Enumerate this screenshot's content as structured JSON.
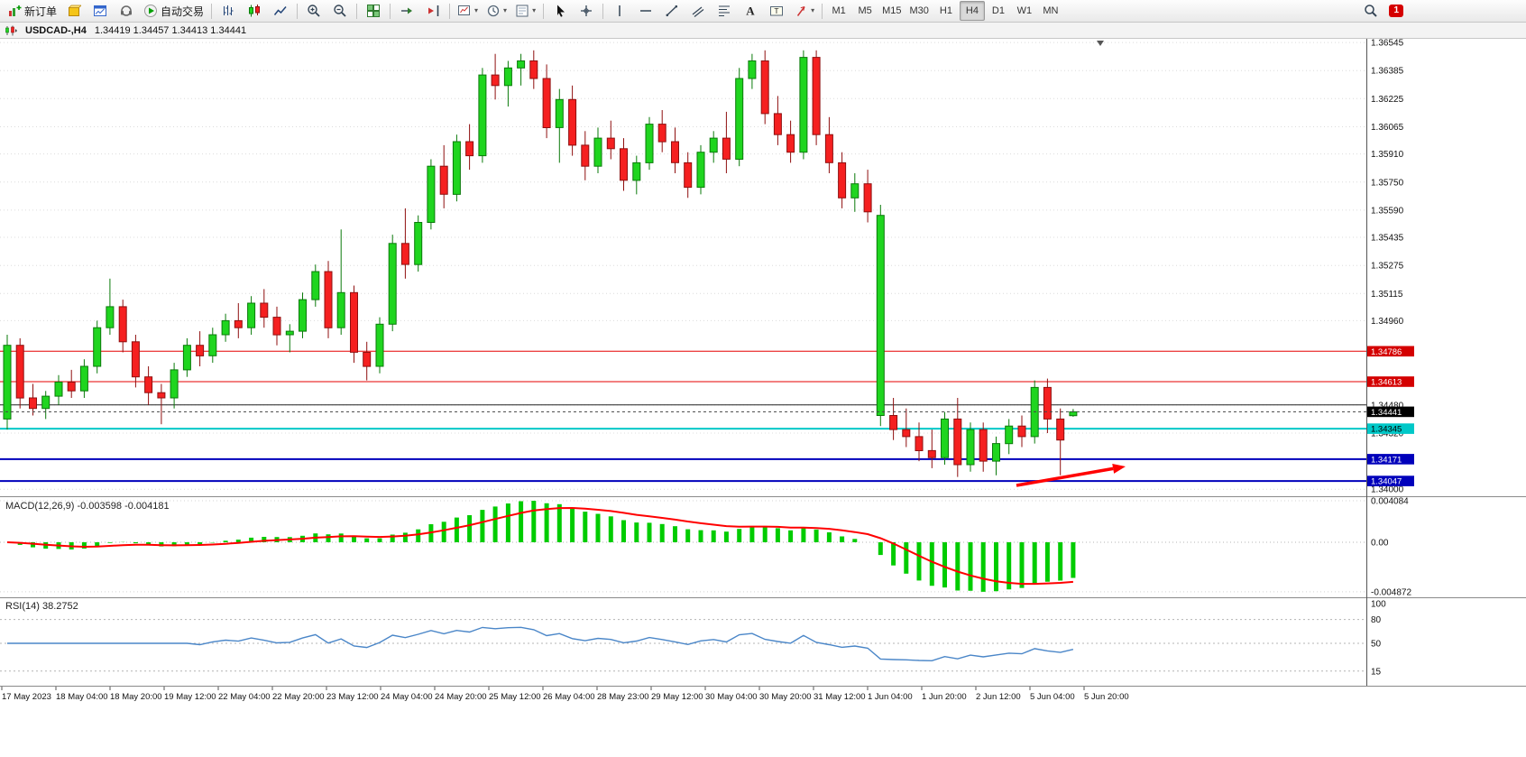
{
  "toolbar": {
    "items": [
      {
        "name": "new-order-button",
        "icon": "chart-plus",
        "label": "新订单"
      },
      {
        "name": "metaeditor-button",
        "icon": "cube"
      },
      {
        "name": "chart-window-button",
        "icon": "chart-window"
      },
      {
        "name": "community-button",
        "icon": "headset"
      },
      {
        "name": "autotrading-button",
        "icon": "play",
        "label": "自动交易"
      },
      {
        "sep": true
      },
      {
        "name": "bar-chart-button",
        "icon": "bars"
      },
      {
        "name": "candlestick-chart-button",
        "icon": "candles"
      },
      {
        "name": "line-chart-button",
        "icon": "line-chart"
      },
      {
        "sep": true
      },
      {
        "name": "zoom-in-button",
        "icon": "zoom-in"
      },
      {
        "name": "zoom-out-button",
        "icon": "zoom-out"
      },
      {
        "sep": true
      },
      {
        "name": "tile-windows-button",
        "icon": "tile"
      },
      {
        "sep": true
      },
      {
        "name": "auto-scroll-button",
        "icon": "autoscroll"
      },
      {
        "name": "chart-shift-button",
        "icon": "shift"
      },
      {
        "sep": true
      },
      {
        "name": "indicators-button",
        "icon": "new-chart",
        "caret": true
      },
      {
        "name": "periods-button",
        "icon": "clock",
        "caret": true
      },
      {
        "name": "templates-button",
        "icon": "template",
        "caret": true
      },
      {
        "sep": true
      },
      {
        "name": "cursor-button",
        "icon": "cursor"
      },
      {
        "name": "crosshair-button",
        "icon": "crosshair"
      },
      {
        "sep": true
      },
      {
        "name": "vertical-line-button",
        "icon": "vline"
      },
      {
        "name": "horizontal-line-button",
        "icon": "hline"
      },
      {
        "name": "trendline-button",
        "icon": "trendline"
      },
      {
        "name": "channel-button",
        "icon": "channel"
      },
      {
        "name": "fibonacci-button",
        "icon": "fibo"
      },
      {
        "name": "text-button",
        "icon": "text"
      },
      {
        "name": "text-label-button",
        "icon": "label"
      },
      {
        "name": "arrows-button",
        "icon": "arrows",
        "caret": true
      },
      {
        "sep": true
      },
      {
        "name": "timeframe-m1-button",
        "tf": true,
        "label": "M1"
      },
      {
        "name": "timeframe-m5-button",
        "tf": true,
        "label": "M5"
      },
      {
        "name": "timeframe-m15-button",
        "tf": true,
        "label": "M15"
      },
      {
        "name": "timeframe-m30-button",
        "tf": true,
        "label": "M30"
      },
      {
        "name": "timeframe-h1-button",
        "tf": true,
        "label": "H1"
      },
      {
        "name": "timeframe-h4-button",
        "tf": true,
        "label": "H4",
        "active": true
      },
      {
        "name": "timeframe-d1-button",
        "tf": true,
        "label": "D1"
      },
      {
        "name": "timeframe-w1-button",
        "tf": true,
        "label": "W1"
      },
      {
        "name": "timeframe-mn-button",
        "tf": true,
        "label": "MN"
      }
    ],
    "right": {
      "notification_count": "1"
    }
  },
  "header": {
    "symbol_period": "USDCAD-,H4",
    "ohlc": "1.34419 1.34457 1.34413 1.34441"
  },
  "chart_data": {
    "type": "candlestick",
    "symbol": "USDCAD-",
    "timeframe": "H4",
    "title": "USDCAD-,H4",
    "current_bar": {
      "open": 1.34419,
      "high": 1.34457,
      "low": 1.34413,
      "close": 1.34441
    },
    "candles": [
      [
        1.344,
        1.3488,
        1.3434,
        1.3482
      ],
      [
        1.3482,
        1.3486,
        1.3446,
        1.3452
      ],
      [
        1.3452,
        1.346,
        1.3442,
        1.3446
      ],
      [
        1.3446,
        1.3456,
        1.344,
        1.3453
      ],
      [
        1.3453,
        1.3465,
        1.3448,
        1.3461
      ],
      [
        1.3461,
        1.3468,
        1.3452,
        1.3456
      ],
      [
        1.3456,
        1.3474,
        1.3452,
        1.347
      ],
      [
        1.347,
        1.3496,
        1.3466,
        1.3492
      ],
      [
        1.3492,
        1.352,
        1.3488,
        1.3504
      ],
      [
        1.3504,
        1.3508,
        1.3478,
        1.3484
      ],
      [
        1.3484,
        1.3488,
        1.3458,
        1.3464
      ],
      [
        1.3464,
        1.347,
        1.3448,
        1.3455
      ],
      [
        1.3455,
        1.346,
        1.3437,
        1.3452
      ],
      [
        1.3452,
        1.3472,
        1.3446,
        1.3468
      ],
      [
        1.3468,
        1.3486,
        1.3464,
        1.3482
      ],
      [
        1.3482,
        1.349,
        1.347,
        1.3476
      ],
      [
        1.3476,
        1.3492,
        1.3472,
        1.3488
      ],
      [
        1.3488,
        1.35,
        1.3484,
        1.3496
      ],
      [
        1.3496,
        1.3506,
        1.3486,
        1.3492
      ],
      [
        1.3492,
        1.351,
        1.3488,
        1.3506
      ],
      [
        1.3506,
        1.3514,
        1.3492,
        1.3498
      ],
      [
        1.3498,
        1.3504,
        1.3482,
        1.3488
      ],
      [
        1.3488,
        1.3494,
        1.3478,
        1.349
      ],
      [
        1.349,
        1.3512,
        1.3486,
        1.3508
      ],
      [
        1.3508,
        1.3528,
        1.3504,
        1.3524
      ],
      [
        1.3524,
        1.353,
        1.3486,
        1.3492
      ],
      [
        1.3492,
        1.3548,
        1.3488,
        1.3512
      ],
      [
        1.3512,
        1.3516,
        1.3472,
        1.3478
      ],
      [
        1.3478,
        1.3484,
        1.3462,
        1.347
      ],
      [
        1.347,
        1.3498,
        1.3466,
        1.3494
      ],
      [
        1.3494,
        1.3545,
        1.349,
        1.354
      ],
      [
        1.354,
        1.356,
        1.352,
        1.3528
      ],
      [
        1.3528,
        1.3556,
        1.3524,
        1.3552
      ],
      [
        1.3552,
        1.3588,
        1.3548,
        1.3584
      ],
      [
        1.3584,
        1.3596,
        1.356,
        1.3568
      ],
      [
        1.3568,
        1.3602,
        1.3564,
        1.3598
      ],
      [
        1.3598,
        1.3608,
        1.3582,
        1.359
      ],
      [
        1.359,
        1.364,
        1.3586,
        1.3636
      ],
      [
        1.3636,
        1.3648,
        1.3622,
        1.363
      ],
      [
        1.363,
        1.3644,
        1.3618,
        1.364
      ],
      [
        1.364,
        1.3648,
        1.363,
        1.3644
      ],
      [
        1.3644,
        1.365,
        1.3628,
        1.3634
      ],
      [
        1.3634,
        1.3642,
        1.36,
        1.3606
      ],
      [
        1.3606,
        1.3628,
        1.3586,
        1.3622
      ],
      [
        1.3622,
        1.363,
        1.359,
        1.3596
      ],
      [
        1.3596,
        1.3604,
        1.3576,
        1.3584
      ],
      [
        1.3584,
        1.3606,
        1.358,
        1.36
      ],
      [
        1.36,
        1.361,
        1.3588,
        1.3594
      ],
      [
        1.3594,
        1.36,
        1.357,
        1.3576
      ],
      [
        1.3576,
        1.359,
        1.3568,
        1.3586
      ],
      [
        1.3586,
        1.3612,
        1.3582,
        1.3608
      ],
      [
        1.3608,
        1.3616,
        1.3592,
        1.3598
      ],
      [
        1.3598,
        1.3606,
        1.358,
        1.3586
      ],
      [
        1.3586,
        1.3592,
        1.3566,
        1.3572
      ],
      [
        1.3572,
        1.3596,
        1.3568,
        1.3592
      ],
      [
        1.3592,
        1.3604,
        1.3586,
        1.36
      ],
      [
        1.36,
        1.3615,
        1.358,
        1.3588
      ],
      [
        1.3588,
        1.364,
        1.3584,
        1.3634
      ],
      [
        1.3634,
        1.3648,
        1.3628,
        1.3644
      ],
      [
        1.3644,
        1.365,
        1.3608,
        1.3614
      ],
      [
        1.3614,
        1.3624,
        1.3596,
        1.3602
      ],
      [
        1.3602,
        1.361,
        1.3586,
        1.3592
      ],
      [
        1.3592,
        1.365,
        1.3588,
        1.3646
      ],
      [
        1.3646,
        1.365,
        1.3596,
        1.3602
      ],
      [
        1.3602,
        1.3612,
        1.358,
        1.3586
      ],
      [
        1.3586,
        1.3592,
        1.356,
        1.3566
      ],
      [
        1.3566,
        1.358,
        1.3558,
        1.3574
      ],
      [
        1.3574,
        1.3582,
        1.3552,
        1.3558
      ],
      [
        1.3556,
        1.3562,
        1.3436,
        1.3442
      ],
      [
        1.3442,
        1.3452,
        1.3428,
        1.3434
      ],
      [
        1.3434,
        1.3446,
        1.3424,
        1.343
      ],
      [
        1.343,
        1.3438,
        1.3416,
        1.3422
      ],
      [
        1.3422,
        1.3434,
        1.3412,
        1.3418
      ],
      [
        1.3418,
        1.3444,
        1.3414,
        1.344
      ],
      [
        1.344,
        1.3452,
        1.3407,
        1.3414
      ],
      [
        1.3414,
        1.3438,
        1.341,
        1.3434
      ],
      [
        1.3434,
        1.3438,
        1.341,
        1.3416
      ],
      [
        1.3416,
        1.343,
        1.3408,
        1.3426
      ],
      [
        1.3426,
        1.344,
        1.342,
        1.3436
      ],
      [
        1.3436,
        1.3442,
        1.3424,
        1.343
      ],
      [
        1.343,
        1.3462,
        1.3426,
        1.3458
      ],
      [
        1.3458,
        1.3463,
        1.3432,
        1.344
      ],
      [
        1.344,
        1.3446,
        1.3408,
        1.3428
      ],
      [
        1.34419,
        1.34457,
        1.34413,
        1.34441
      ]
    ],
    "color_overrides": {
      "68": "up"
    },
    "y_ticks": [
      "1.36545",
      "1.36385",
      "1.36225",
      "1.36065",
      "1.35910",
      "1.35750",
      "1.35590",
      "1.35435",
      "1.35275",
      "1.35115",
      "1.34960",
      "1.34480",
      "1.34320",
      "1.34000"
    ],
    "x_labels": [
      "17 May 2023",
      "18 May 04:00",
      "18 May 20:00",
      "19 May 12:00",
      "22 May 04:00",
      "22 May 20:00",
      "23 May 12:00",
      "24 May 04:00",
      "24 May 20:00",
      "25 May 12:00",
      "26 May 04:00",
      "28 May 23:00",
      "29 May 12:00",
      "30 May 04:00",
      "30 May 20:00",
      "31 May 12:00",
      "1 Jun 04:00",
      "1 Jun 20:00",
      "2 Jun 12:00",
      "5 Jun 04:00",
      "5 Jun 20:00"
    ],
    "hlines": [
      {
        "price": 1.34786,
        "color": "#e60000",
        "width": 1,
        "badge": "1.34786",
        "badge_bg": "#d40000",
        "badge_fg": "#ffffff"
      },
      {
        "price": 1.34613,
        "color": "#e60000",
        "width": 1,
        "badge": "1.34613",
        "badge_bg": "#d40000",
        "badge_fg": "#ffffff"
      },
      {
        "price": 1.3448,
        "color": "#222222",
        "width": 1
      },
      {
        "price": 1.34345,
        "color": "#00c8c8",
        "width": 2,
        "badge": "1.34345",
        "badge_bg": "#00c8c8",
        "badge_fg": "#000000"
      },
      {
        "price": 1.34171,
        "color": "#0000bb",
        "width": 2,
        "badge": "1.34171",
        "badge_bg": "#0000bb",
        "badge_fg": "#ffffff"
      },
      {
        "price": 1.34047,
        "color": "#0000bb",
        "width": 2,
        "badge": "1.34047",
        "badge_bg": "#0000bb",
        "badge_fg": "#ffffff"
      }
    ],
    "bid": {
      "price": 1.34441,
      "badge": "1.34441",
      "badge_bg": "#000000",
      "badge_fg": "#ffffff"
    },
    "arrow": {
      "from": [
        1127,
        495
      ],
      "to": [
        1248,
        474
      ],
      "color": "#ff0000"
    },
    "indicators": {
      "macd": {
        "label": "MACD(12,26,9)",
        "value_text": "-0.003598 -0.004181",
        "fast": 12,
        "slow": 26,
        "signal": 9,
        "axis_labels": [
          "0.004084",
          "0.00",
          "-0.004872"
        ],
        "axis_values": [
          0.004084,
          0,
          -0.004872
        ],
        "hist_color": "#00cc00",
        "signal_color": "#ff0000"
      },
      "rsi": {
        "label": "RSI(14)",
        "value_text": "38.2752",
        "period": 14,
        "axis_labels": [
          "100",
          "80",
          "50",
          "15"
        ],
        "axis_values": [
          100,
          80,
          50,
          15
        ],
        "levels": [
          80,
          50,
          15
        ],
        "line_color": "#4a86c8"
      }
    },
    "colors": {
      "bull": "#1fd51f",
      "bull_stroke": "#0a7a0a",
      "bear": "#f52020",
      "bear_stroke": "#8f0f0f",
      "grid": "#dcdcdc",
      "bg": "#ffffff"
    }
  }
}
